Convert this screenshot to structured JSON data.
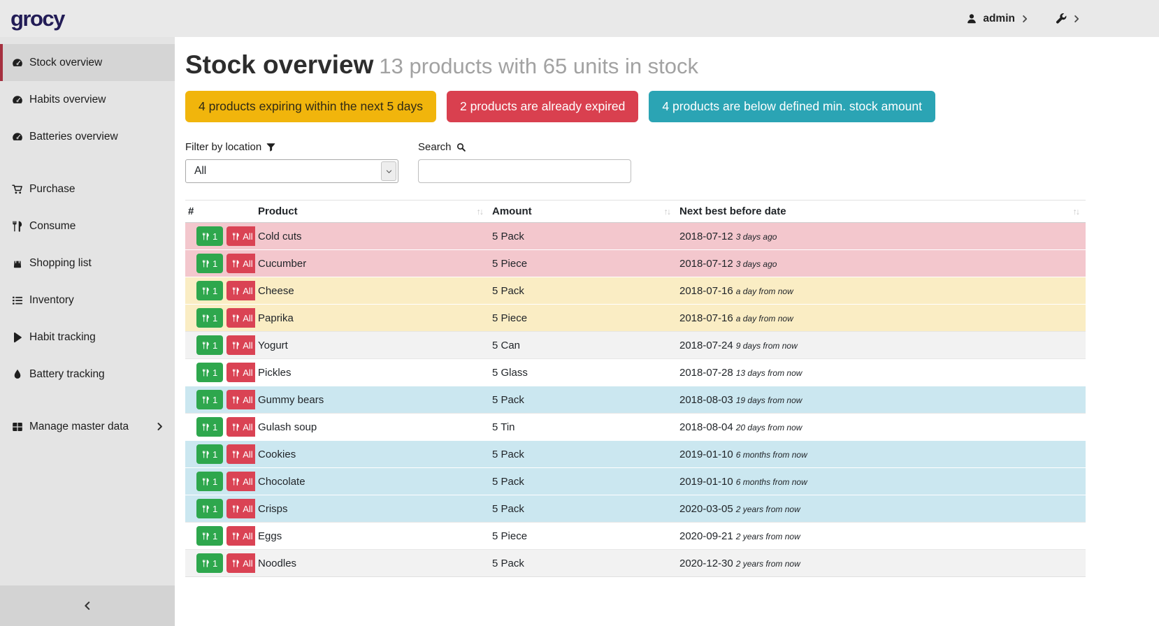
{
  "app": {
    "brand": "grocy"
  },
  "navbar": {
    "user_label": "admin"
  },
  "sidebar": {
    "items": [
      {
        "label": "Stock overview",
        "icon": "tachometer-icon",
        "active": true
      },
      {
        "label": "Habits overview",
        "icon": "tachometer-icon"
      },
      {
        "label": "Batteries overview",
        "icon": "tachometer-icon",
        "gap_after": true
      },
      {
        "label": "Purchase",
        "icon": "cart-icon"
      },
      {
        "label": "Consume",
        "icon": "utensils-icon"
      },
      {
        "label": "Shopping list",
        "icon": "shopping-bag-icon"
      },
      {
        "label": "Inventory",
        "icon": "list-icon"
      },
      {
        "label": "Habit tracking",
        "icon": "play-icon"
      },
      {
        "label": "Battery tracking",
        "icon": "droplet-icon",
        "gap_after": true
      },
      {
        "label": "Manage master data",
        "icon": "table-icon",
        "chevron": true
      }
    ]
  },
  "header": {
    "title": "Stock overview",
    "subtitle": "13 products with 65 units in stock"
  },
  "alerts": [
    {
      "label": "4 products expiring within the next 5 days",
      "bg": "#f1b50c",
      "fg": "#2f2a16"
    },
    {
      "label": "2 products are already expired",
      "bg": "#d9404f",
      "fg": "#ffffff"
    },
    {
      "label": "4 products are below defined min. stock amount",
      "bg": "#2ba4b4",
      "fg": "#ffffff"
    }
  ],
  "filters": {
    "location_label": "Filter by location",
    "location_value": "All",
    "search_label": "Search",
    "search_value": ""
  },
  "table": {
    "sort_icon_glyph": "↑↓",
    "columns": [
      {
        "label": "#",
        "sortable": false
      },
      {
        "label": "Product",
        "sortable": true
      },
      {
        "label": "Amount",
        "sortable": true
      },
      {
        "label": "Next best before date",
        "sortable": true
      }
    ],
    "row_buttons": {
      "consume_one": "1",
      "consume_all": "All"
    },
    "rows": [
      {
        "product": "Cold cuts",
        "amount": "5 Pack",
        "date": "2018-07-12",
        "due": "3 days ago",
        "status": "expired"
      },
      {
        "product": "Cucumber",
        "amount": "5 Piece",
        "date": "2018-07-12",
        "due": "3 days ago",
        "status": "expired"
      },
      {
        "product": "Cheese",
        "amount": "5 Pack",
        "date": "2018-07-16",
        "due": "a day from now",
        "status": "expiring"
      },
      {
        "product": "Paprika",
        "amount": "5 Piece",
        "date": "2018-07-16",
        "due": "a day from now",
        "status": "expiring"
      },
      {
        "product": "Yogurt",
        "amount": "5 Can",
        "date": "2018-07-24",
        "due": "9 days from now",
        "status": "plain"
      },
      {
        "product": "Pickles",
        "amount": "5 Glass",
        "date": "2018-07-28",
        "due": "13 days from now",
        "status": "plain"
      },
      {
        "product": "Gummy bears",
        "amount": "5 Pack",
        "date": "2018-08-03",
        "due": "19 days from now",
        "status": "belowmin"
      },
      {
        "product": "Gulash soup",
        "amount": "5 Tin",
        "date": "2018-08-04",
        "due": "20 days from now",
        "status": "plain"
      },
      {
        "product": "Cookies",
        "amount": "5 Pack",
        "date": "2019-01-10",
        "due": "6 months from now",
        "status": "belowmin"
      },
      {
        "product": "Chocolate",
        "amount": "5 Pack",
        "date": "2019-01-10",
        "due": "6 months from now",
        "status": "belowmin"
      },
      {
        "product": "Crisps",
        "amount": "5 Pack",
        "date": "2020-03-05",
        "due": "2 years from now",
        "status": "belowmin"
      },
      {
        "product": "Eggs",
        "amount": "5 Piece",
        "date": "2020-09-21",
        "due": "2 years from now",
        "status": "plain"
      },
      {
        "product": "Noodles",
        "amount": "5 Pack",
        "date": "2020-12-30",
        "due": "2 years from now",
        "status": "plain"
      }
    ]
  },
  "colors": {
    "navbar_bg": "#e9e9e9",
    "sidebar_bg": "#e4e4e4",
    "sidebar_active_bg": "#d5d5d5",
    "sidebar_active_border": "#a5303f",
    "brand": "#221c56",
    "row_expired": "#f3c7cd",
    "row_expiring": "#faedc4",
    "row_below_min": "#cbe7f0",
    "row_stripe": "#f2f2f2",
    "consume_one_btn": "#2ea74d",
    "consume_all_btn": "#da4354"
  }
}
